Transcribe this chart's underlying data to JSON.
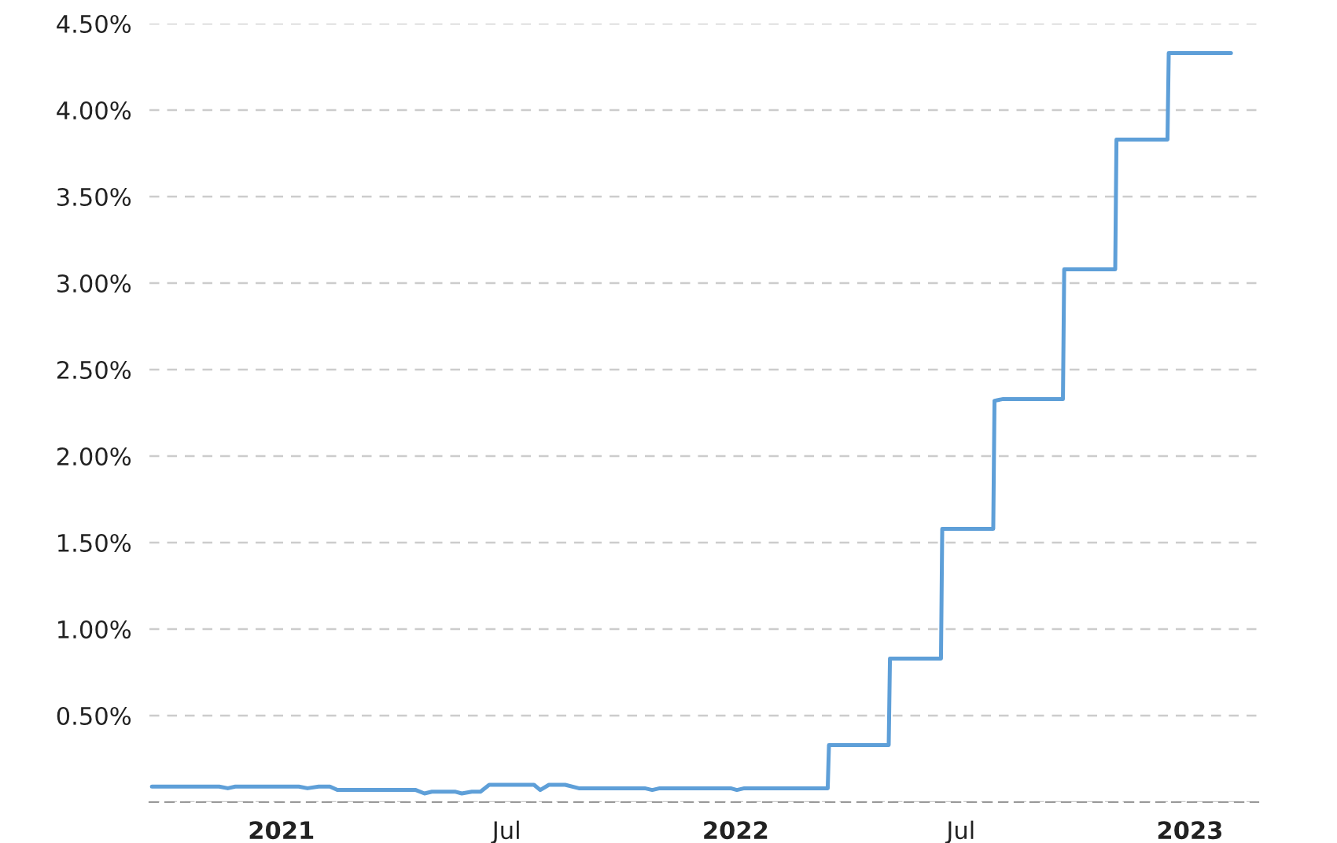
{
  "chart_data": {
    "type": "line",
    "x": [
      "2020-09-19",
      "2020-11-12",
      "2020-11-19",
      "2020-11-25",
      "2021-01-15",
      "2021-01-22",
      "2021-01-31",
      "2021-02-09",
      "2021-02-15",
      "2021-04-19",
      "2021-04-26",
      "2021-05-02",
      "2021-05-21",
      "2021-05-26",
      "2021-06-03",
      "2021-06-10",
      "2021-06-17",
      "2021-07-23",
      "2021-07-28",
      "2021-08-04",
      "2021-08-17",
      "2021-08-28",
      "2021-10-20",
      "2021-10-26",
      "2021-11-01",
      "2021-12-28",
      "2022-01-02",
      "2022-01-08",
      "2022-03-16",
      "2022-03-17",
      "2022-05-04",
      "2022-05-05",
      "2022-06-15",
      "2022-06-16",
      "2022-07-27",
      "2022-07-28",
      "2022-08-04",
      "2022-09-21",
      "2022-09-22",
      "2022-11-02",
      "2022-11-03",
      "2022-12-14",
      "2022-12-15",
      "2023-02-03"
    ],
    "series": [
      {
        "color": "#5e9fd8",
        "values": [
          0.09,
          0.09,
          0.08,
          0.09,
          0.09,
          0.08,
          0.09,
          0.09,
          0.07,
          0.07,
          0.05,
          0.06,
          0.06,
          0.05,
          0.06,
          0.06,
          0.1,
          0.1,
          0.07,
          0.1,
          0.1,
          0.08,
          0.08,
          0.07,
          0.08,
          0.08,
          0.07,
          0.08,
          0.08,
          0.33,
          0.33,
          0.83,
          0.83,
          1.58,
          1.58,
          2.32,
          2.33,
          2.33,
          3.08,
          3.08,
          3.83,
          3.83,
          4.33,
          4.33
        ]
      }
    ],
    "xlim": [
      "2020-09-17",
      "2023-02-25"
    ],
    "xticks": [
      {
        "value": "2021-01-01",
        "label": "2021"
      },
      {
        "value": "2021-07-01",
        "label": "Jul"
      },
      {
        "value": "2022-01-01",
        "label": "2022"
      },
      {
        "value": "2022-07-01",
        "label": "Jul"
      },
      {
        "value": "2023-01-01",
        "label": "2023"
      }
    ],
    "ylim": [
      0,
      4.5
    ],
    "yticks": [
      {
        "value": 0,
        "label": null
      },
      {
        "value": 0.5,
        "label": "0.50%"
      },
      {
        "value": 1.0,
        "label": "1.00%"
      },
      {
        "value": 1.5,
        "label": "1.50%"
      },
      {
        "value": 2.0,
        "label": "2.00%"
      },
      {
        "value": 2.5,
        "label": "2.50%"
      },
      {
        "value": 3.0,
        "label": "3.00%"
      },
      {
        "value": 3.5,
        "label": "3.50%"
      },
      {
        "value": 4.0,
        "label": "4.00%"
      },
      {
        "value": 4.5,
        "label": "4.50%"
      }
    ],
    "grid": "y",
    "marker": "none",
    "line_style": "solid",
    "legend": false
  }
}
